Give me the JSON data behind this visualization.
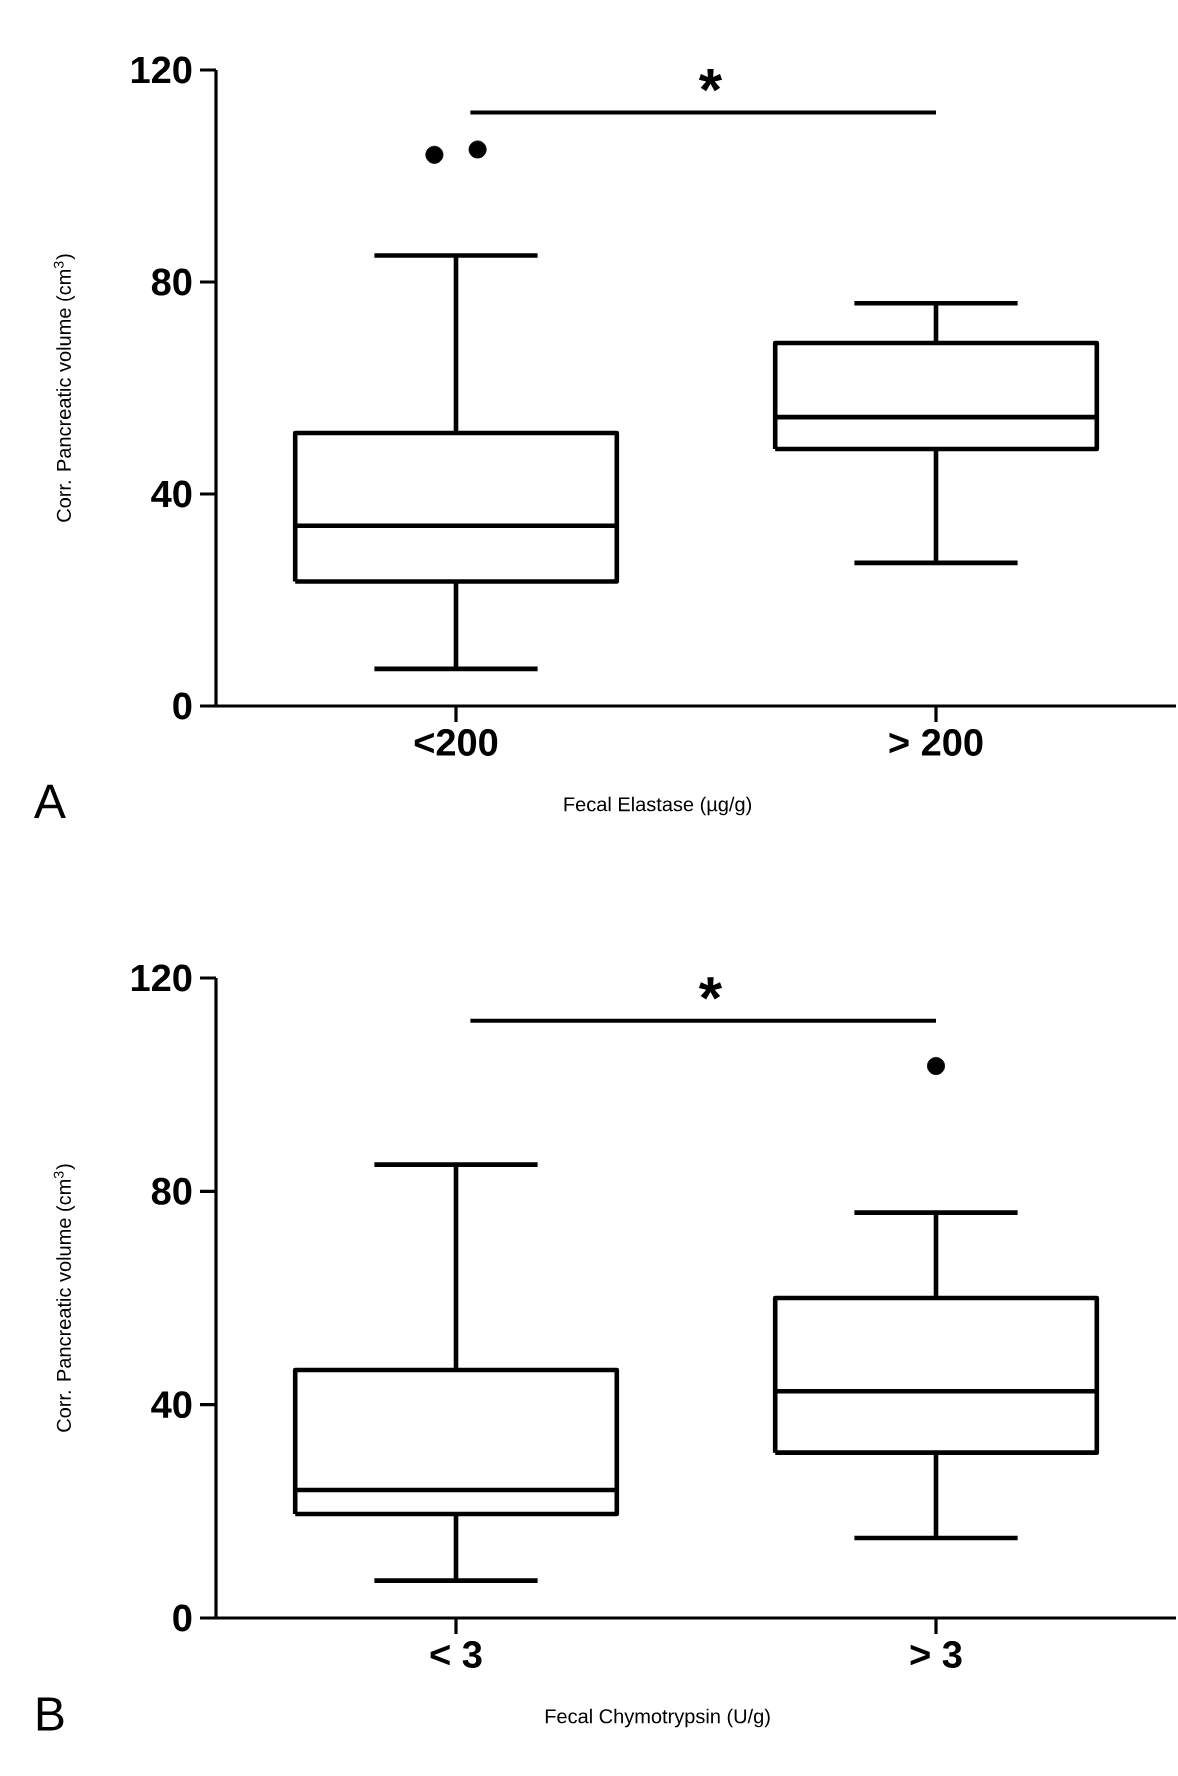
{
  "chart_data": [
    {
      "type": "box",
      "categories": [
        "<200",
        "> 200"
      ],
      "xlabel": "Fecal Elastase (µg/g)",
      "ylabel": "Corr. Pancreatic volume (cm$^{3}$)",
      "ylim": [
        0,
        120
      ],
      "yticks": [
        0,
        40,
        80,
        120
      ],
      "boxes": [
        {
          "low": 7,
          "q1": 23.5,
          "median": 34,
          "q3": 51.5,
          "high": 85,
          "outliers": [
            104,
            105
          ]
        },
        {
          "low": 27,
          "q1": 48.5,
          "median": 54.5,
          "q3": 68.5,
          "high": 76
        }
      ],
      "annotations": [
        "*",
        "A"
      ]
    },
    {
      "type": "box",
      "categories": [
        "< 3",
        "> 3"
      ],
      "xlabel": "Fecal Chymotrypsin (U/g)",
      "ylabel": "Corr. Pancreatic volume (cm$^{3}$)",
      "ylim": [
        0,
        120
      ],
      "yticks": [
        0,
        40,
        80,
        120
      ],
      "boxes": [
        {
          "low": 7,
          "q1": 19.5,
          "median": 24,
          "q3": 46.5,
          "high": 85
        },
        {
          "low": 15,
          "q1": 31,
          "median": 42.5,
          "q3": 60,
          "high": 76,
          "outliers": [
            103.5
          ]
        }
      ],
      "annotations": [
        "*",
        "B"
      ]
    }
  ]
}
